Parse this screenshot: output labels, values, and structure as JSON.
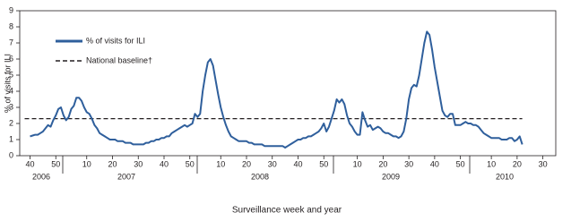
{
  "chart_data": {
    "type": "line",
    "y_label": "% of visits for ILI",
    "x_label": "Surveillance week and year",
    "years": [
      "2006",
      "2007",
      "2008",
      "2009",
      "2010"
    ],
    "x": [
      0,
      1,
      2,
      3,
      4,
      5,
      6,
      7,
      8,
      9,
      10,
      11,
      12,
      13,
      14,
      15,
      16,
      17,
      18,
      19,
      20,
      21,
      22,
      23,
      24,
      25,
      26,
      27,
      28,
      29,
      30,
      31,
      32,
      33,
      34,
      35,
      36,
      37,
      38,
      39,
      40,
      41,
      42,
      43,
      44,
      45,
      46,
      47,
      48,
      49,
      50,
      51,
      52,
      53,
      54,
      55,
      56,
      57,
      58,
      59,
      60,
      61,
      62,
      63,
      64,
      65,
      66,
      67,
      68,
      69,
      70,
      71,
      72,
      73,
      74,
      75,
      76,
      77,
      78,
      79,
      80,
      81,
      82,
      83,
      84,
      85,
      86,
      87,
      88,
      89,
      90,
      91,
      92,
      93,
      94,
      95,
      96,
      97,
      98,
      99,
      100,
      101,
      102,
      103,
      104,
      105,
      106,
      107,
      108,
      109,
      110,
      111,
      112,
      113,
      114,
      115,
      116,
      117,
      118,
      119,
      120,
      121,
      122,
      123,
      124,
      125,
      126,
      127,
      128,
      129,
      130,
      131,
      132,
      133,
      134,
      135,
      136,
      137,
      138,
      139,
      140,
      141,
      142,
      143,
      144,
      145,
      146,
      147,
      148,
      149,
      150,
      151,
      152,
      153,
      154,
      155,
      156,
      157,
      158,
      159,
      160,
      161,
      162,
      163,
      164,
      165,
      166,
      167,
      168,
      169,
      170,
      171,
      172,
      173,
      174,
      175,
      176,
      177,
      178,
      179,
      180,
      181,
      182,
      183,
      184,
      185,
      186,
      187,
      188,
      189,
      190,
      191
    ],
    "series": [
      {
        "name": "% of visits for ILI",
        "color": "#2f5f9c",
        "values": [
          1.2,
          1.25,
          1.3,
          1.3,
          1.4,
          1.5,
          1.7,
          1.9,
          1.8,
          2.2,
          2.5,
          2.9,
          3.0,
          2.5,
          2.2,
          2.4,
          2.9,
          3.1,
          3.6,
          3.6,
          3.4,
          3.0,
          2.7,
          2.6,
          2.3,
          1.9,
          1.7,
          1.4,
          1.3,
          1.2,
          1.1,
          1.0,
          1.0,
          1.0,
          0.9,
          0.9,
          0.9,
          0.8,
          0.8,
          0.8,
          0.7,
          0.7,
          0.7,
          0.7,
          0.7,
          0.8,
          0.8,
          0.9,
          0.9,
          1.0,
          1.0,
          1.1,
          1.1,
          1.2,
          1.2,
          1.4,
          1.5,
          1.6,
          1.7,
          1.8,
          1.9,
          1.8,
          1.9,
          2.0,
          2.6,
          2.4,
          2.6,
          4.0,
          5.0,
          5.8,
          6.0,
          5.6,
          4.7,
          3.8,
          3.0,
          2.4,
          1.9,
          1.5,
          1.2,
          1.1,
          1.0,
          0.9,
          0.9,
          0.9,
          0.9,
          0.8,
          0.8,
          0.7,
          0.7,
          0.7,
          0.7,
          0.6,
          0.6,
          0.6,
          0.6,
          0.6,
          0.6,
          0.6,
          0.6,
          0.5,
          0.6,
          0.7,
          0.8,
          0.9,
          1.0,
          1.0,
          1.1,
          1.1,
          1.2,
          1.2,
          1.3,
          1.4,
          1.5,
          1.7,
          2.0,
          1.5,
          1.8,
          2.3,
          2.8,
          3.5,
          3.3,
          3.5,
          3.2,
          2.5,
          2.0,
          1.8,
          1.5,
          1.3,
          1.3,
          2.7,
          2.2,
          1.8,
          1.9,
          1.6,
          1.7,
          1.8,
          1.7,
          1.5,
          1.4,
          1.4,
          1.3,
          1.2,
          1.2,
          1.1,
          1.2,
          1.5,
          2.3,
          3.5,
          4.2,
          4.4,
          4.3,
          5.0,
          6.0,
          7.0,
          7.7,
          7.5,
          6.6,
          5.5,
          4.6,
          3.7,
          2.8,
          2.5,
          2.4,
          2.6,
          2.6,
          1.9,
          1.9,
          1.9,
          2.0,
          2.1,
          2.0,
          2.0,
          1.9,
          1.9,
          1.8,
          1.6,
          1.4,
          1.3,
          1.2,
          1.1,
          1.1,
          1.1,
          1.1,
          1.0,
          1.0,
          1.0,
          1.1,
          1.1,
          0.9,
          1.0,
          1.2,
          0.7
        ]
      }
    ],
    "reference_line": {
      "name": "National baseline†",
      "value": 2.3,
      "color": "#231f20"
    },
    "xlim": [
      -4,
      204
    ],
    "xticks": [
      {
        "value": 0,
        "label": "40"
      },
      {
        "value": 10,
        "label": "50"
      },
      {
        "value": 22,
        "label": "10"
      },
      {
        "value": 32,
        "label": "20"
      },
      {
        "value": 42,
        "label": "30"
      },
      {
        "value": 52,
        "label": "40"
      },
      {
        "value": 62,
        "label": "50"
      },
      {
        "value": 74,
        "label": "10"
      },
      {
        "value": 84,
        "label": "20"
      },
      {
        "value": 94,
        "label": "30"
      },
      {
        "value": 104,
        "label": "40"
      },
      {
        "value": 114,
        "label": "50"
      },
      {
        "value": 127,
        "label": "10"
      },
      {
        "value": 137,
        "label": "20"
      },
      {
        "value": 147,
        "label": "30"
      },
      {
        "value": 157,
        "label": "40"
      },
      {
        "value": 167,
        "label": "50"
      },
      {
        "value": 179,
        "label": "10"
      },
      {
        "value": 189,
        "label": "20"
      },
      {
        "value": 199,
        "label": "30"
      }
    ],
    "ylim": [
      0,
      9
    ],
    "yticks": [
      0,
      1,
      2,
      3,
      4,
      5,
      6,
      7,
      8,
      9
    ]
  }
}
